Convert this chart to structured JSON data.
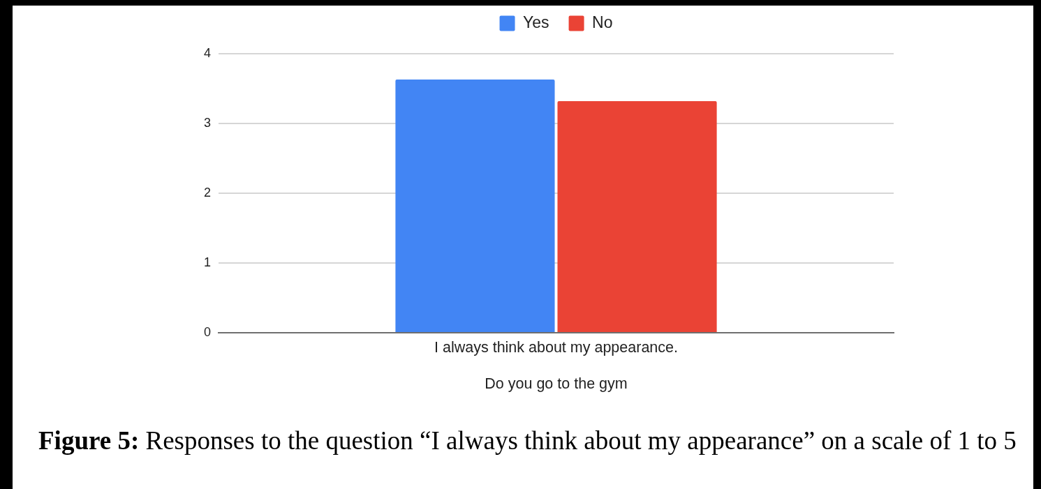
{
  "chart_data": {
    "type": "bar",
    "categories": [
      "I always think about my appearance."
    ],
    "series": [
      {
        "name": "Yes",
        "color": "#4285f4",
        "values": [
          3.63
        ]
      },
      {
        "name": "No",
        "color": "#ea4335",
        "values": [
          3.32
        ]
      }
    ],
    "xlabel": "Do you go to the gym",
    "ylim": [
      0,
      4
    ],
    "yticks": [
      0,
      1,
      2,
      3,
      4
    ],
    "grid": "y",
    "legend": "top",
    "annotations": [
      "Figure 5: Responses to the question “I always think about my appearance” on a scale of 1 to 5"
    ]
  }
}
